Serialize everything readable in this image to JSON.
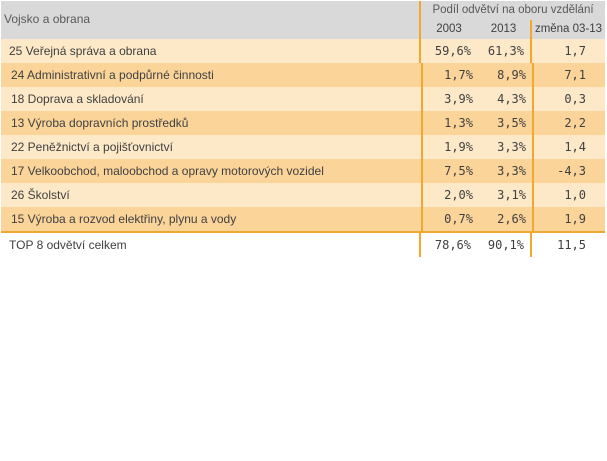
{
  "table": {
    "title": "Vojsko a obrana",
    "group_header": "Podíl odvětví na oboru vzdělání",
    "col_2003": "2003",
    "col_2013": "2013",
    "col_change": "změna 03-13",
    "rows": [
      {
        "name": "25 Veřejná správa a obrana",
        "v2003": "59,6%",
        "v2013": "61,3%",
        "change": "1,7"
      },
      {
        "name": "24 Administrativní a podpůrné činnosti",
        "v2003": "1,7%",
        "v2013": "8,9%",
        "change": "7,1"
      },
      {
        "name": "18 Doprava a skladování",
        "v2003": "3,9%",
        "v2013": "4,3%",
        "change": "0,3"
      },
      {
        "name": "13 Výroba dopravních prostředků",
        "v2003": "1,3%",
        "v2013": "3,5%",
        "change": "2,2"
      },
      {
        "name": "22 Peněžnictví a pojišťovnictví",
        "v2003": "1,9%",
        "v2013": "3,3%",
        "change": "1,4"
      },
      {
        "name": "17 Velkoobchod, maloobchod a opravy motorových vozidel",
        "v2003": "7,5%",
        "v2013": "3,3%",
        "change": "-4,3"
      },
      {
        "name": "26 Školství",
        "v2003": "2,0%",
        "v2013": "3,1%",
        "change": "1,0"
      },
      {
        "name": "15 Výroba a rozvod elektřiny, plynu a vody",
        "v2003": "0,7%",
        "v2013": "2,6%",
        "change": "1,9"
      }
    ],
    "total": {
      "name": "TOP 8 odvětví celkem",
      "v2003": "78,6%",
      "v2013": "90,1%",
      "change": "11,5"
    }
  },
  "colors": {
    "header_bg": "#d9d9d9",
    "row_light": "#fde9c8",
    "row_dark": "#fbd49a",
    "accent_line": "#f0a830"
  }
}
